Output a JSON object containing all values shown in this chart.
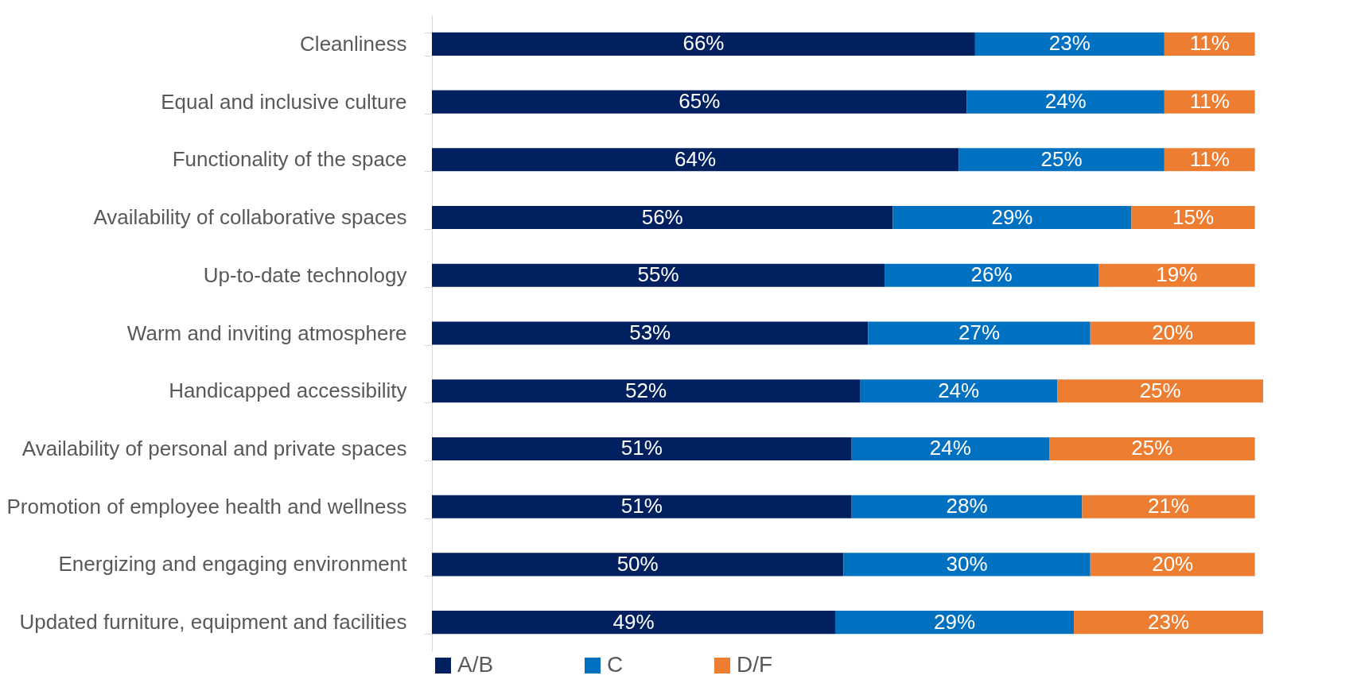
{
  "chart_data": {
    "type": "bar",
    "orientation": "horizontal",
    "stacked": true,
    "legend": "bottom",
    "grid": false,
    "categories": [
      "Cleanliness",
      "Equal and inclusive culture",
      "Functionality of the space",
      "Availability of collaborative spaces",
      "Up-to-date technology",
      "Warm and inviting atmosphere",
      "Handicapped accessibility",
      "Availability of personal and private spaces",
      "Promotion of employee health and wellness",
      "Energizing and engaging environment",
      "Updated furniture, equipment and facilities"
    ],
    "series": [
      {
        "name": "A/B",
        "color": "#002060",
        "values": [
          66,
          65,
          64,
          56,
          55,
          53,
          52,
          51,
          51,
          50,
          49
        ],
        "value_labels": [
          "66%",
          "65%",
          "64%",
          "56%",
          "55%",
          "53%",
          "52%",
          "51%",
          "51%",
          "50%",
          "49%"
        ]
      },
      {
        "name": "C",
        "color": "#0070c0",
        "values": [
          23,
          24,
          25,
          29,
          26,
          27,
          24,
          24,
          28,
          30,
          29
        ],
        "value_labels": [
          "23%",
          "24%",
          "25%",
          "29%",
          "26%",
          "27%",
          "24%",
          "24%",
          "28%",
          "30%",
          "29%"
        ]
      },
      {
        "name": "D/F",
        "color": "#ed7d31",
        "values": [
          11,
          11,
          11,
          15,
          19,
          20,
          25,
          25,
          21,
          20,
          23
        ],
        "value_labels": [
          "11%",
          "11%",
          "11%",
          "15%",
          "19%",
          "20%",
          "25%",
          "25%",
          "21%",
          "20%",
          "23%"
        ]
      }
    ]
  }
}
